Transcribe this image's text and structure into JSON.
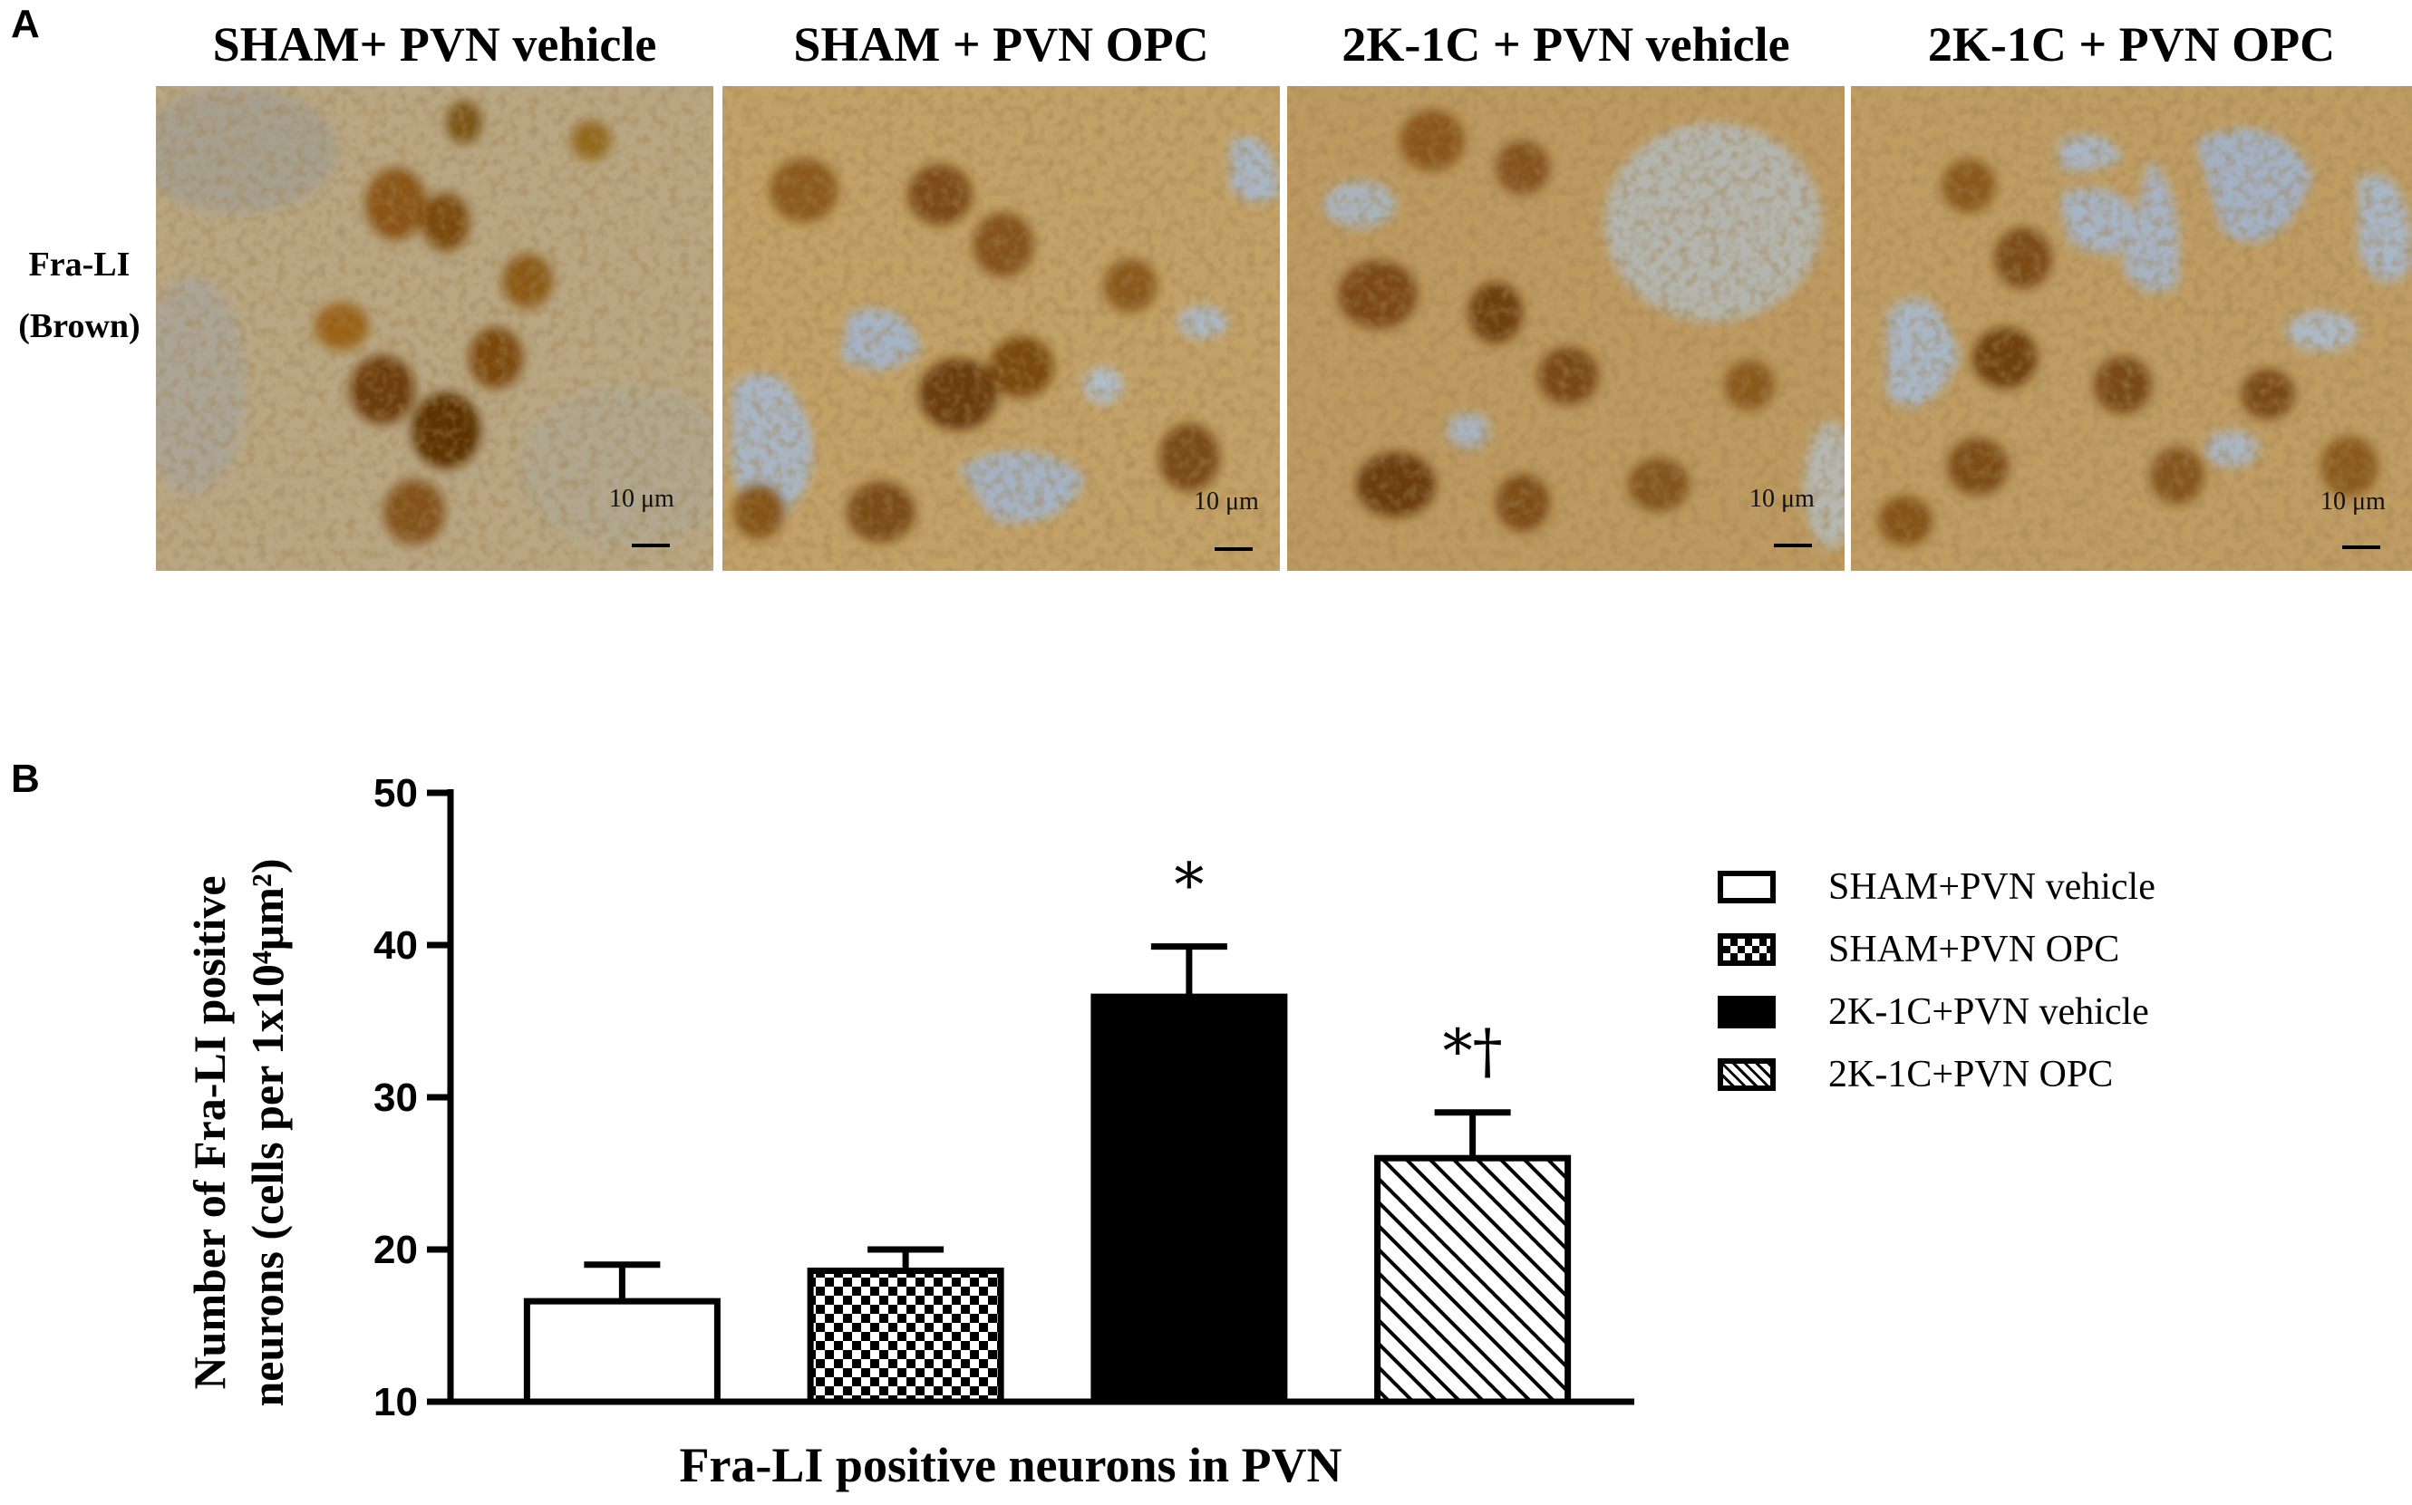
{
  "panels": {
    "a": "A",
    "b": "B"
  },
  "micrographs": [
    {
      "title": "SHAM+ PVN vehicle",
      "scale": "10 μm"
    },
    {
      "title": "SHAM + PVN OPC",
      "scale": "10 μm"
    },
    {
      "title": "2K-1C + PVN vehicle",
      "scale": "10 μm"
    },
    {
      "title": "2K-1C + PVN OPC",
      "scale": "10 μm"
    }
  ],
  "row_label": {
    "line1": "Fra-LI",
    "line2": "(Brown)"
  },
  "chart_data": {
    "type": "bar",
    "xlabel": "Fra-LI positive neurons in PVN",
    "ylabel_line1": "Number of Fra-LI positive",
    "ylabel_line2": "neurons (cells per 1x10⁴μm²)",
    "ylim": [
      10,
      50
    ],
    "yticks": [
      10,
      20,
      30,
      40,
      50
    ],
    "grid": false,
    "legend_position": "right",
    "categories": [
      "SHAM+PVN vehicle",
      "SHAM+PVN OPC",
      "2K-1C+PVN vehicle",
      "2K-1C+PVN OPC"
    ],
    "values": [
      16.6,
      18.6,
      36.6,
      26.0
    ],
    "errors": [
      2.4,
      1.4,
      3.3,
      3.0
    ],
    "patterns": [
      "none",
      "checker",
      "solid",
      "diagonal"
    ],
    "annotations": [
      "",
      "",
      "*",
      "*†"
    ]
  }
}
